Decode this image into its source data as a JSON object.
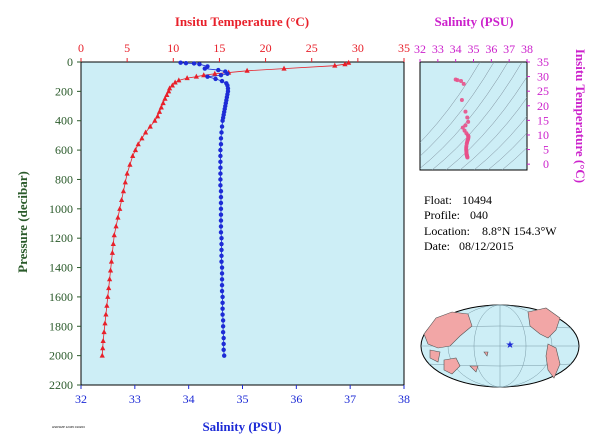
{
  "colors": {
    "temperature": "#e8202a",
    "salinity": "#1d2bd6",
    "ts_axis": "#cc22cc",
    "pressure_axis": "#2a5a2a",
    "plot_bg": "#cdeef6",
    "ts_points": "#e8508a",
    "land": "#f2a6a6"
  },
  "info": {
    "float_label": "Float:",
    "float_value": "10494",
    "profile_label": "Profile:",
    "profile_value": "040",
    "location_label": "Location:",
    "location_value": "8.8°N 154.3°W",
    "date_label": "Date:",
    "date_value": "08/12/2015"
  },
  "footer_code": "HSDSMP 12345 010203",
  "chart_data": [
    {
      "type": "line",
      "x_axis_bottom": {
        "label": "Salinity (PSU)",
        "range": [
          32,
          38
        ],
        "ticks": [
          "32",
          "33",
          "34",
          "35",
          "36",
          "37",
          "38"
        ]
      },
      "x_axis_top": {
        "label": "Insitu Temperature (°C)",
        "range": [
          0,
          35
        ],
        "ticks": [
          "0",
          "5",
          "10",
          "15",
          "20",
          "25",
          "30",
          "35"
        ]
      },
      "y_axis": {
        "label": "Pressure (decibar)",
        "range": [
          0,
          2200
        ],
        "reversed": true,
        "ticks": [
          "0",
          "200",
          "400",
          "600",
          "800",
          "1000",
          "1200",
          "1400",
          "1600",
          "1800",
          "2000",
          "2200"
        ]
      },
      "series": [
        {
          "name": "Insitu Temperature (°C)",
          "axis": "top",
          "marker": "triangle",
          "points": [
            [
              29.0,
              5
            ],
            [
              28.6,
              15
            ],
            [
              27.5,
              25
            ],
            [
              22.0,
              45
            ],
            [
              18.0,
              60
            ],
            [
              16.0,
              72
            ],
            [
              14.5,
              80
            ],
            [
              13.3,
              90
            ],
            [
              12.5,
              100
            ],
            [
              11.5,
              110
            ],
            [
              10.6,
              125
            ],
            [
              10.2,
              140
            ],
            [
              9.9,
              160
            ],
            [
              9.6,
              180
            ],
            [
              9.5,
              200
            ],
            [
              9.3,
              225
            ],
            [
              9.1,
              250
            ],
            [
              8.9,
              280
            ],
            [
              8.7,
              310
            ],
            [
              8.5,
              340
            ],
            [
              8.3,
              370
            ],
            [
              8.0,
              400
            ],
            [
              7.5,
              440
            ],
            [
              7.0,
              480
            ],
            [
              6.6,
              520
            ],
            [
              6.2,
              560
            ],
            [
              5.9,
              600
            ],
            [
              5.6,
              640
            ],
            [
              5.3,
              700
            ],
            [
              5.0,
              760
            ],
            [
              4.8,
              820
            ],
            [
              4.6,
              880
            ],
            [
              4.4,
              940
            ],
            [
              4.2,
              1000
            ],
            [
              4.0,
              1060
            ],
            [
              3.8,
              1120
            ],
            [
              3.6,
              1180
            ],
            [
              3.5,
              1240
            ],
            [
              3.4,
              1300
            ],
            [
              3.3,
              1360
            ],
            [
              3.2,
              1420
            ],
            [
              3.1,
              1480
            ],
            [
              3.0,
              1540
            ],
            [
              2.9,
              1600
            ],
            [
              2.8,
              1660
            ],
            [
              2.7,
              1720
            ],
            [
              2.6,
              1780
            ],
            [
              2.5,
              1840
            ],
            [
              2.4,
              1900
            ],
            [
              2.35,
              1950
            ],
            [
              2.3,
              2000
            ]
          ]
        },
        {
          "name": "Salinity (PSU)",
          "axis": "bottom",
          "marker": "circle",
          "points": [
            [
              33.85,
              5
            ],
            [
              33.95,
              8
            ],
            [
              34.1,
              10
            ],
            [
              34.2,
              15
            ],
            [
              34.35,
              30
            ],
            [
              34.3,
              45
            ],
            [
              34.55,
              55
            ],
            [
              34.68,
              65
            ],
            [
              34.72,
              80
            ],
            [
              34.6,
              90
            ],
            [
              34.35,
              100
            ],
            [
              34.5,
              115
            ],
            [
              34.62,
              130
            ],
            [
              34.7,
              145
            ],
            [
              34.72,
              160
            ],
            [
              34.73,
              180
            ],
            [
              34.73,
              200
            ],
            [
              34.72,
              220
            ],
            [
              34.71,
              240
            ],
            [
              34.7,
              260
            ],
            [
              34.69,
              280
            ],
            [
              34.68,
              300
            ],
            [
              34.67,
              320
            ],
            [
              34.66,
              340
            ],
            [
              34.65,
              360
            ],
            [
              34.64,
              380
            ],
            [
              34.63,
              400
            ],
            [
              34.62,
              440
            ],
            [
              34.61,
              480
            ],
            [
              34.6,
              520
            ],
            [
              34.6,
              560
            ],
            [
              34.59,
              600
            ],
            [
              34.59,
              640
            ],
            [
              34.59,
              680
            ],
            [
              34.59,
              720
            ],
            [
              34.59,
              760
            ],
            [
              34.59,
              800
            ],
            [
              34.59,
              840
            ],
            [
              34.6,
              880
            ],
            [
              34.6,
              920
            ],
            [
              34.6,
              960
            ],
            [
              34.6,
              1000
            ],
            [
              34.6,
              1040
            ],
            [
              34.6,
              1080
            ],
            [
              34.6,
              1120
            ],
            [
              34.6,
              1160
            ],
            [
              34.61,
              1200
            ],
            [
              34.61,
              1240
            ],
            [
              34.61,
              1280
            ],
            [
              34.61,
              1320
            ],
            [
              34.61,
              1360
            ],
            [
              34.62,
              1400
            ],
            [
              34.62,
              1440
            ],
            [
              34.62,
              1480
            ],
            [
              34.62,
              1520
            ],
            [
              34.62,
              1560
            ],
            [
              34.63,
              1600
            ],
            [
              34.63,
              1640
            ],
            [
              34.63,
              1680
            ],
            [
              34.63,
              1720
            ],
            [
              34.64,
              1760
            ],
            [
              34.64,
              1800
            ],
            [
              34.64,
              1840
            ],
            [
              34.65,
              1880
            ],
            [
              34.65,
              1920
            ],
            [
              34.65,
              1960
            ],
            [
              34.66,
              2000
            ]
          ]
        }
      ]
    },
    {
      "type": "scatter",
      "x_axis": {
        "label": "Salinity (PSU)",
        "range": [
          32,
          38
        ],
        "ticks": [
          "32",
          "33",
          "34",
          "35",
          "36",
          "37",
          "38"
        ]
      },
      "y_axis": {
        "label": "Insitu Temperature (°C)",
        "range": [
          -2,
          35
        ],
        "ticks": [
          "0",
          "5",
          "10",
          "15",
          "20",
          "25",
          "30",
          "35"
        ]
      },
      "points": [
        [
          34.0,
          29.0
        ],
        [
          34.1,
          28.8
        ],
        [
          34.3,
          28.5
        ],
        [
          34.45,
          27.5
        ],
        [
          34.35,
          22.0
        ],
        [
          34.55,
          18.0
        ],
        [
          34.65,
          16.0
        ],
        [
          34.7,
          14.5
        ],
        [
          34.55,
          13.3
        ],
        [
          34.4,
          12.5
        ],
        [
          34.5,
          11.5
        ],
        [
          34.6,
          10.6
        ],
        [
          34.68,
          9.9
        ],
        [
          34.72,
          9.5
        ],
        [
          34.71,
          9.1
        ],
        [
          34.7,
          8.7
        ],
        [
          34.68,
          8.3
        ],
        [
          34.66,
          8.0
        ],
        [
          34.64,
          7.5
        ],
        [
          34.62,
          7.0
        ],
        [
          34.6,
          6.2
        ],
        [
          34.59,
          5.6
        ],
        [
          34.59,
          5.0
        ],
        [
          34.6,
          4.6
        ],
        [
          34.6,
          4.2
        ],
        [
          34.61,
          3.8
        ],
        [
          34.61,
          3.5
        ],
        [
          34.62,
          3.2
        ],
        [
          34.63,
          3.0
        ],
        [
          34.64,
          2.7
        ],
        [
          34.65,
          2.5
        ],
        [
          34.66,
          2.3
        ]
      ]
    }
  ]
}
